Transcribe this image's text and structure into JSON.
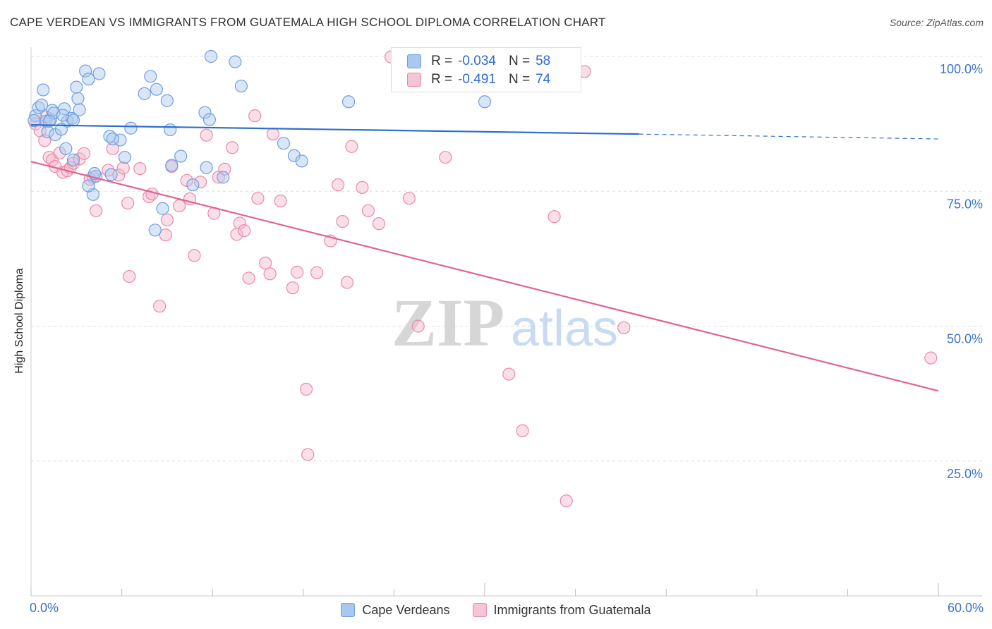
{
  "title": "CAPE VERDEAN VS IMMIGRANTS FROM GUATEMALA HIGH SCHOOL DIPLOMA CORRELATION CHART",
  "source": "Source: ZipAtlas.com",
  "watermark": {
    "zip": "ZIP",
    "atlas": "atlas"
  },
  "legend": {
    "r_label": "R =",
    "n_label": "N =",
    "series": [
      {
        "r": "-0.034",
        "n": "58"
      },
      {
        "r": "-0.491",
        "n": "74"
      }
    ]
  },
  "colors": {
    "blue_fill": "#a9c8f0",
    "blue_stroke": "#6f9fe0",
    "blue_line": "#2e6fcc",
    "pink_fill": "#f6b8cc",
    "pink_stroke": "#e88aa8",
    "pink_line": "#e0648f",
    "grid": "#dddddd",
    "tick_text": "#3b73c8"
  },
  "chart_data": {
    "type": "scatter",
    "title": "CAPE VERDEAN VS IMMIGRANTS FROM GUATEMALA HIGH SCHOOL DIPLOMA CORRELATION CHART",
    "xlabel": "",
    "ylabel": "High School Diploma",
    "xlim": [
      0,
      60
    ],
    "ylim": [
      0,
      101
    ],
    "x_tick_labels": [
      "0.0%",
      "60.0%"
    ],
    "y_ticks": [
      {
        "value": 100,
        "label": "100.0%"
      },
      {
        "value": 75,
        "label": "75.0%"
      },
      {
        "value": 50,
        "label": "50.0%"
      },
      {
        "value": 25,
        "label": "25.0%"
      }
    ],
    "series": [
      {
        "name": "Cape Verdeans",
        "r": -0.034,
        "n": 58,
        "trend": {
          "x0": 0,
          "y0": 87.3,
          "x1": 40.2,
          "y1": 85.6,
          "dash_to_x": 60,
          "dash_to_y": 84.7
        },
        "points": [
          [
            0.3,
            89.0
          ],
          [
            0.5,
            90.5
          ],
          [
            0.7,
            91.0
          ],
          [
            0.8,
            93.8
          ],
          [
            1.0,
            88.0
          ],
          [
            1.1,
            86.0
          ],
          [
            1.3,
            88.3
          ],
          [
            1.4,
            90.0
          ],
          [
            1.5,
            89.5
          ],
          [
            1.6,
            85.5
          ],
          [
            2.4,
            88.0
          ],
          [
            2.7,
            88.5
          ],
          [
            2.8,
            88.2
          ],
          [
            2.2,
            90.3
          ],
          [
            2.1,
            89.1
          ],
          [
            2.0,
            86.5
          ],
          [
            3.1,
            92.2
          ],
          [
            3.2,
            90.1
          ],
          [
            3.0,
            94.3
          ],
          [
            3.6,
            97.3
          ],
          [
            3.8,
            95.8
          ],
          [
            4.5,
            96.8
          ],
          [
            5.2,
            85.2
          ],
          [
            5.9,
            84.5
          ],
          [
            6.6,
            86.7
          ],
          [
            7.5,
            93.1
          ],
          [
            7.9,
            96.3
          ],
          [
            8.3,
            93.9
          ],
          [
            9.0,
            91.8
          ],
          [
            9.2,
            86.4
          ],
          [
            9.3,
            79.8
          ],
          [
            9.9,
            81.5
          ],
          [
            10.7,
            76.2
          ],
          [
            11.5,
            89.6
          ],
          [
            11.8,
            88.3
          ],
          [
            11.9,
            100.0
          ],
          [
            11.6,
            79.4
          ],
          [
            13.5,
            99.0
          ],
          [
            13.9,
            94.5
          ],
          [
            12.7,
            77.6
          ],
          [
            16.7,
            83.9
          ],
          [
            17.4,
            81.6
          ],
          [
            17.9,
            80.6
          ],
          [
            21.0,
            91.6
          ],
          [
            30.0,
            91.6
          ],
          [
            8.7,
            71.8
          ],
          [
            8.2,
            67.8
          ],
          [
            4.1,
            74.4
          ],
          [
            3.8,
            76.0
          ],
          [
            4.3,
            77.8
          ],
          [
            5.3,
            78.1
          ],
          [
            5.4,
            84.7
          ],
          [
            6.2,
            81.3
          ],
          [
            2.8,
            80.8
          ],
          [
            2.3,
            82.9
          ],
          [
            0.2,
            88.1
          ],
          [
            1.2,
            88.0
          ],
          [
            4.2,
            78.3
          ]
        ]
      },
      {
        "name": "Immigrants from Guatemala",
        "r": -0.491,
        "n": 74,
        "trend": {
          "x0": 0,
          "y0": 80.5,
          "x1": 60,
          "y1": 38.0
        },
        "points": [
          [
            0.3,
            87.5
          ],
          [
            0.6,
            86.2
          ],
          [
            0.9,
            84.4
          ],
          [
            1.2,
            81.3
          ],
          [
            1.4,
            80.8
          ],
          [
            1.6,
            79.6
          ],
          [
            1.9,
            82.1
          ],
          [
            2.1,
            78.5
          ],
          [
            2.4,
            78.8
          ],
          [
            2.6,
            79.4
          ],
          [
            2.8,
            80.2
          ],
          [
            3.2,
            81.0
          ],
          [
            3.5,
            82.0
          ],
          [
            3.9,
            77.2
          ],
          [
            4.1,
            77.6
          ],
          [
            4.3,
            71.4
          ],
          [
            5.1,
            78.9
          ],
          [
            5.4,
            82.9
          ],
          [
            5.8,
            78.0
          ],
          [
            6.1,
            79.3
          ],
          [
            6.4,
            72.8
          ],
          [
            6.5,
            59.2
          ],
          [
            7.2,
            79.2
          ],
          [
            7.8,
            74.0
          ],
          [
            8.0,
            74.5
          ],
          [
            8.5,
            53.7
          ],
          [
            8.9,
            66.9
          ],
          [
            9.0,
            69.7
          ],
          [
            9.3,
            79.6
          ],
          [
            9.8,
            72.3
          ],
          [
            10.3,
            77.0
          ],
          [
            10.5,
            73.6
          ],
          [
            10.8,
            63.1
          ],
          [
            11.2,
            76.7
          ],
          [
            11.6,
            85.4
          ],
          [
            12.1,
            70.9
          ],
          [
            12.4,
            77.6
          ],
          [
            12.8,
            79.1
          ],
          [
            13.3,
            83.1
          ],
          [
            13.6,
            67.0
          ],
          [
            13.8,
            69.1
          ],
          [
            14.1,
            67.7
          ],
          [
            14.4,
            58.9
          ],
          [
            14.8,
            89.0
          ],
          [
            15.0,
            73.7
          ],
          [
            15.5,
            61.7
          ],
          [
            15.8,
            59.7
          ],
          [
            16.0,
            85.6
          ],
          [
            16.5,
            73.2
          ],
          [
            17.3,
            57.1
          ],
          [
            17.6,
            60.0
          ],
          [
            18.2,
            38.3
          ],
          [
            18.3,
            26.2
          ],
          [
            18.9,
            59.9
          ],
          [
            19.8,
            65.8
          ],
          [
            20.3,
            76.2
          ],
          [
            20.6,
            69.4
          ],
          [
            20.9,
            58.1
          ],
          [
            21.2,
            83.3
          ],
          [
            21.9,
            75.7
          ],
          [
            22.3,
            71.4
          ],
          [
            23.0,
            69.0
          ],
          [
            23.8,
            99.9
          ],
          [
            25.0,
            73.7
          ],
          [
            25.6,
            50.0
          ],
          [
            27.4,
            81.3
          ],
          [
            31.6,
            41.1
          ],
          [
            32.5,
            30.6
          ],
          [
            34.6,
            70.3
          ],
          [
            35.4,
            17.6
          ],
          [
            36.6,
            97.2
          ],
          [
            39.2,
            49.7
          ],
          [
            59.5,
            44.1
          ],
          [
            1.0,
            88.8
          ]
        ]
      }
    ]
  },
  "bottom_legend": [
    "Cape Verdeans",
    "Immigrants from Guatemala"
  ]
}
